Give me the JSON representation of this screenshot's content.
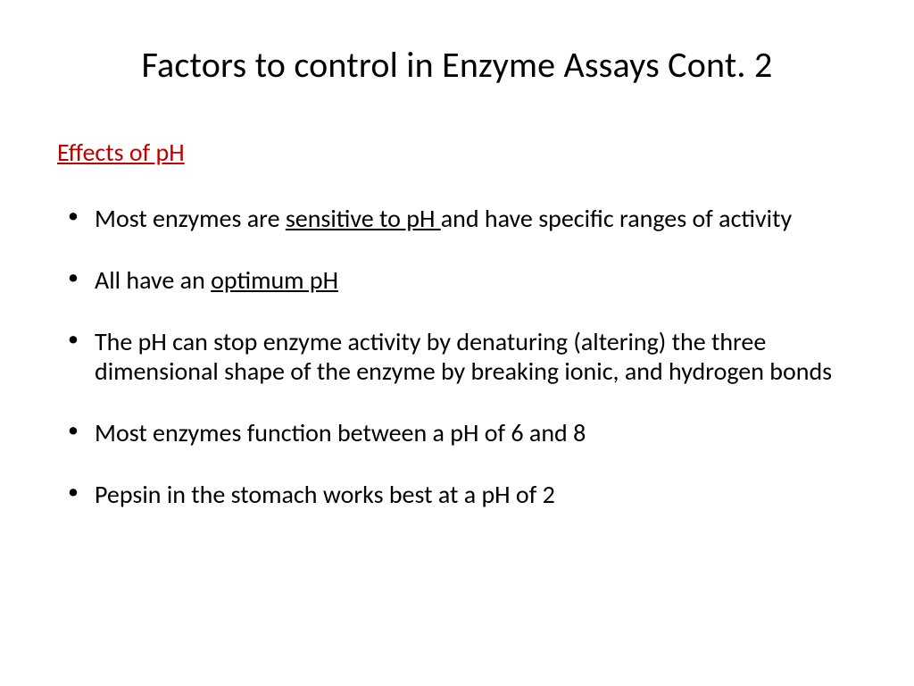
{
  "title": "Factors to control in Enzyme Assays Cont. 2",
  "subhead": {
    "text": "Effects of pH",
    "color": "#c00000"
  },
  "bullets": [
    {
      "pre": "Most enzymes are ",
      "u": "sensitive to pH ",
      "post": "and have specific ranges of activity"
    },
    {
      "pre": "All have an ",
      "u": "optimum pH",
      "post": ""
    },
    {
      "pre": "The pH can stop enzyme activity by denaturing (altering) the three dimensional shape of the enzyme by breaking ionic, and hydrogen bonds",
      "u": "",
      "post": ""
    },
    {
      "pre": "Most enzymes function between a pH of 6 and 8",
      "u": "",
      "post": ""
    },
    {
      "pre": "Pepsin in the stomach works best at a pH of 2",
      "u": "",
      "post": ""
    }
  ],
  "text_color": "#000000",
  "background_color": "#ffffff"
}
